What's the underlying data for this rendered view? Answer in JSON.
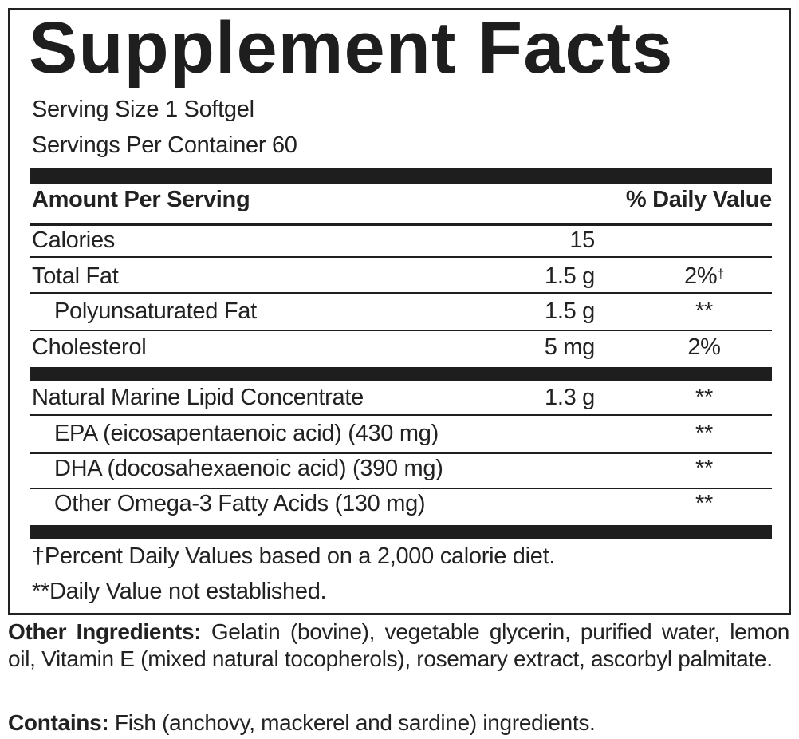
{
  "label": {
    "title": "Supplement Facts",
    "serving_size": "Serving Size 1 Softgel",
    "servings_per_container": "Servings Per Container 60",
    "header": {
      "amount": "Amount Per Serving",
      "daily_value": "% Daily Value"
    },
    "rows": [
      {
        "name": "Calories",
        "amount": "15",
        "dv": null,
        "dv_note": null
      },
      {
        "name": "Total Fat",
        "amount": "1.5 g",
        "dv": "2%",
        "dv_note": "†"
      },
      {
        "name": "Polyunsaturated Fat",
        "amount": "1.5 g",
        "dv": "**",
        "dv_note": null
      },
      {
        "name": "Cholesterol",
        "amount": "5 mg",
        "dv": "2%",
        "dv_note": null
      },
      {
        "name": "Natural Marine Lipid Concentrate",
        "amount": "1.3 g",
        "dv": "**",
        "dv_note": null
      },
      {
        "name": "EPA (eicosapentaenoic acid) (430 mg)",
        "amount": null,
        "dv": "**",
        "dv_note": null
      },
      {
        "name": "DHA (docosahexaenoic acid) (390 mg)",
        "amount": null,
        "dv": "**",
        "dv_note": null
      },
      {
        "name": "Other Omega-3 Fatty Acids (130 mg)",
        "amount": null,
        "dv": "**",
        "dv_note": null
      }
    ],
    "footnotes": [
      "†Percent Daily Values based on a 2,000 calorie diet.",
      "**Daily Value not established."
    ]
  },
  "other_ingredients": {
    "label": "Other Ingredients:",
    "text": "Gelatin (bovine), vegetable glycerin, purified water, lemon oil, Vitamin E (mixed natural tocopherols), rosemary extract, ascorbyl palmitate."
  },
  "contains": {
    "label": "Contains:",
    "text": "Fish (anchovy, mackerel and sardine) ingredients."
  }
}
